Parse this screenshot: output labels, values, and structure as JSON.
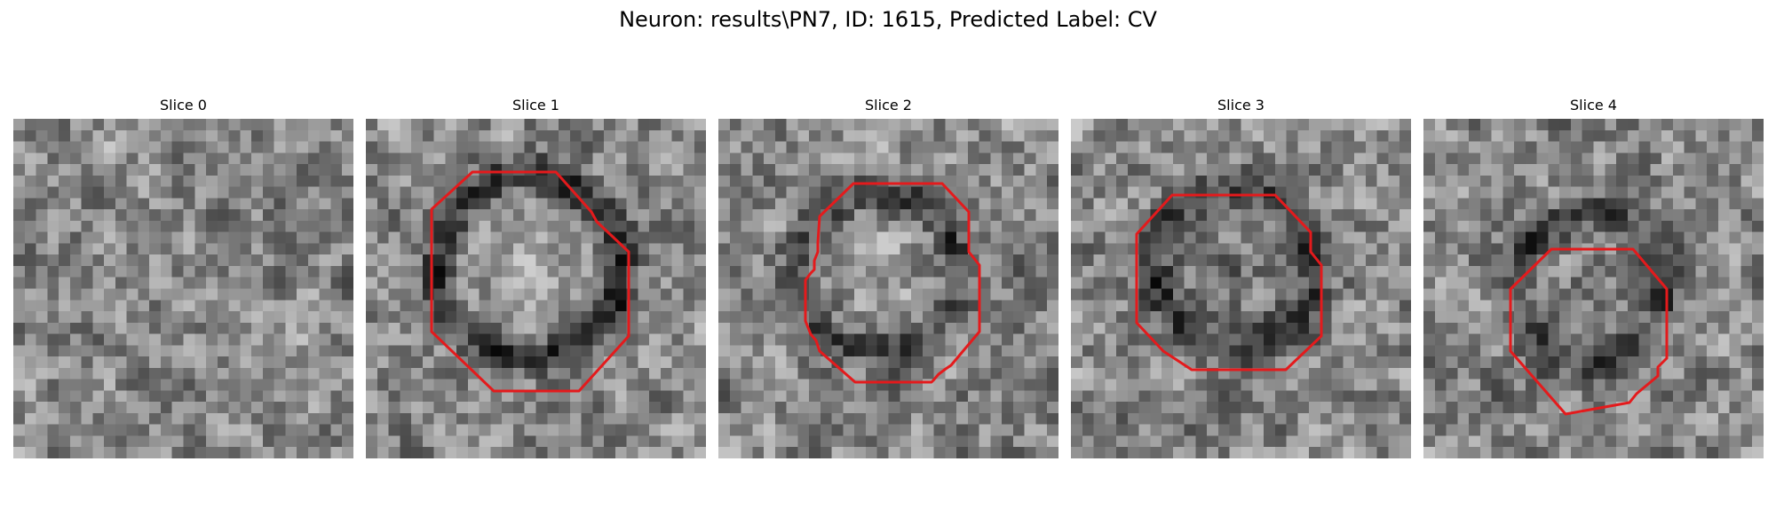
{
  "figure": {
    "title": "Neuron: results\\PN7, ID: 1615, Predicted Label: CV"
  },
  "slices": [
    {
      "title": "Slice 0",
      "has_contour": false
    },
    {
      "title": "Slice 1",
      "has_contour": true
    },
    {
      "title": "Slice 2",
      "has_contour": true
    },
    {
      "title": "Slice 3",
      "has_contour": true
    },
    {
      "title": "Slice 4",
      "has_contour": true
    }
  ],
  "style": {
    "contour_color": "#e41a1c",
    "colormap": "gray"
  }
}
